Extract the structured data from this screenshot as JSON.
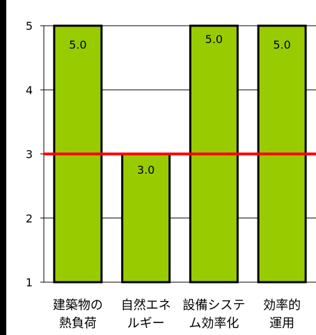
{
  "chart_data": {
    "type": "bar",
    "categories": [
      [
        "建築物の",
        "熱負荷"
      ],
      [
        "自然エネ",
        "ルギー"
      ],
      [
        "設備システ",
        "ム効率化"
      ],
      [
        "効率的",
        "運用"
      ]
    ],
    "values": [
      5.0,
      3.0,
      5.0,
      5.0
    ],
    "value_labels": [
      "5.0",
      "3.0",
      "5.0",
      "5.0"
    ],
    "ylim": [
      1,
      5
    ],
    "yticks": [
      "1",
      "2",
      "3",
      "4",
      "5"
    ],
    "reference_line": 3,
    "grid": true,
    "colors": {
      "bar": "#99cc00",
      "bar_outline": "#000000",
      "reference": "#ff0000",
      "grid": "#000000",
      "left_bar": "#000000"
    }
  }
}
